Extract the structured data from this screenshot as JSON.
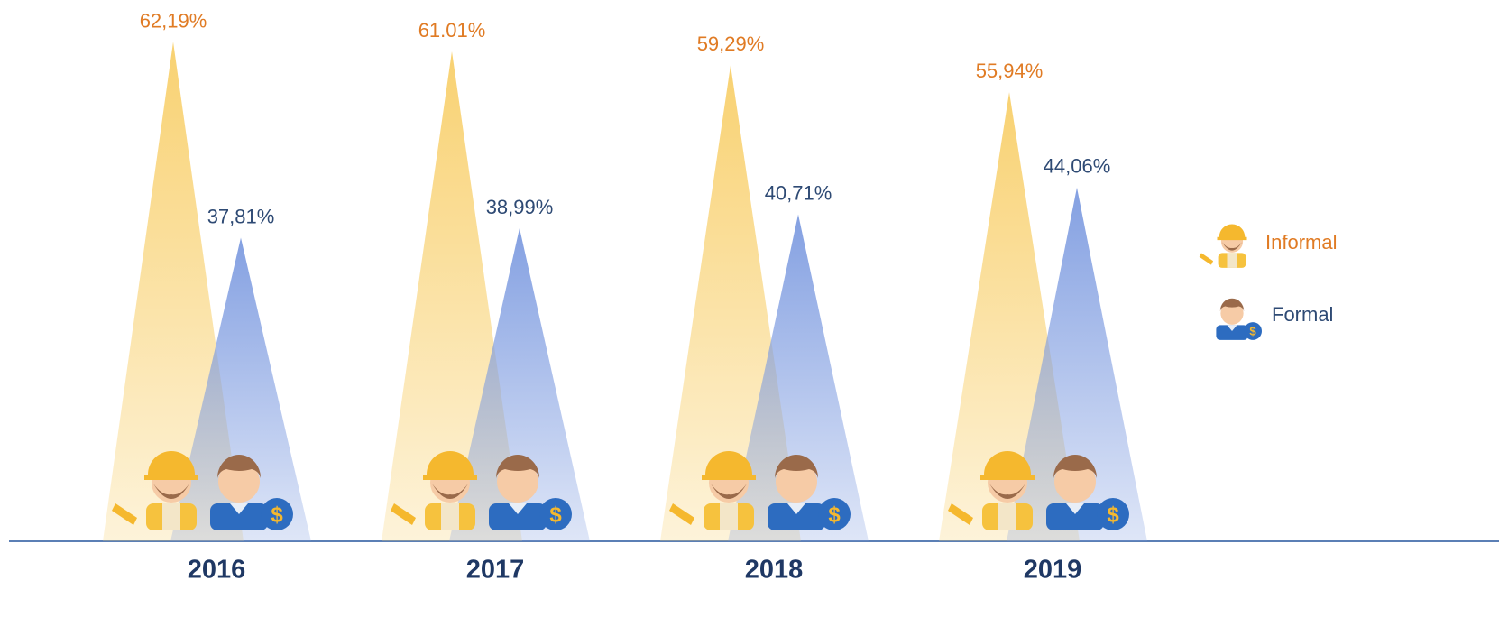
{
  "chart_data": {
    "type": "spike",
    "categories": [
      "2016",
      "2017",
      "2018",
      "2019"
    ],
    "series": [
      {
        "name": "Informal",
        "color": "#f8cf6a",
        "label_color": "#e07b24",
        "values": [
          62.19,
          61.01,
          59.29,
          55.94
        ],
        "value_labels": [
          "62,19%",
          "61.01%",
          "59,29%",
          "55,94%"
        ]
      },
      {
        "name": "Formal",
        "color": "#7d9be0",
        "label_color": "#2e4a74",
        "values": [
          37.81,
          38.99,
          40.71,
          44.06
        ],
        "value_labels": [
          "37,81%",
          "38,99%",
          "40,71%",
          "44,06%"
        ]
      }
    ]
  }
}
